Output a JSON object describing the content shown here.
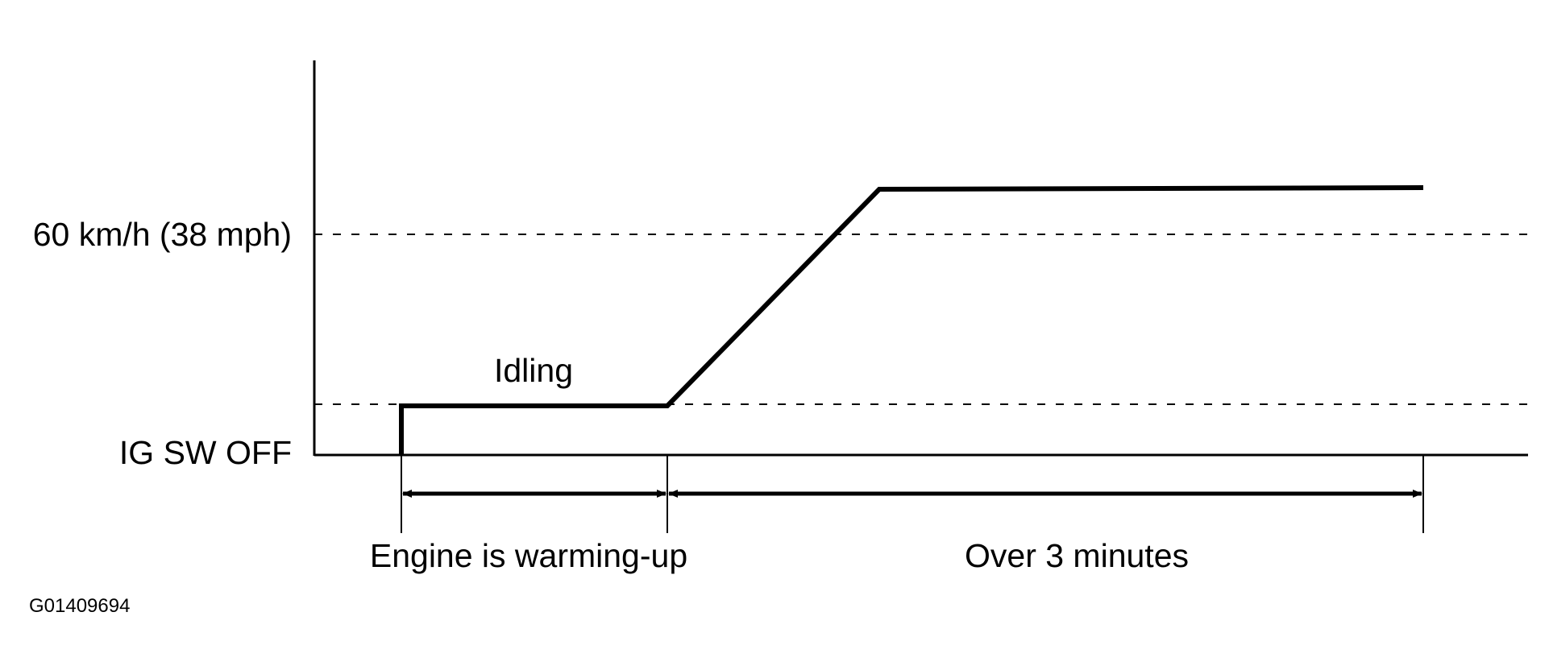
{
  "diagram": {
    "y_labels": {
      "speed": "60 km/h (38 mph)",
      "ig_off": "IG SW OFF"
    },
    "segment_label_idling": "Idling",
    "bottom_labels": {
      "warmup": "Engine is warming-up",
      "over3": "Over 3 minutes"
    },
    "figure_id": "G01409694",
    "colors": {
      "line": "#000000",
      "background": "#ffffff"
    }
  }
}
